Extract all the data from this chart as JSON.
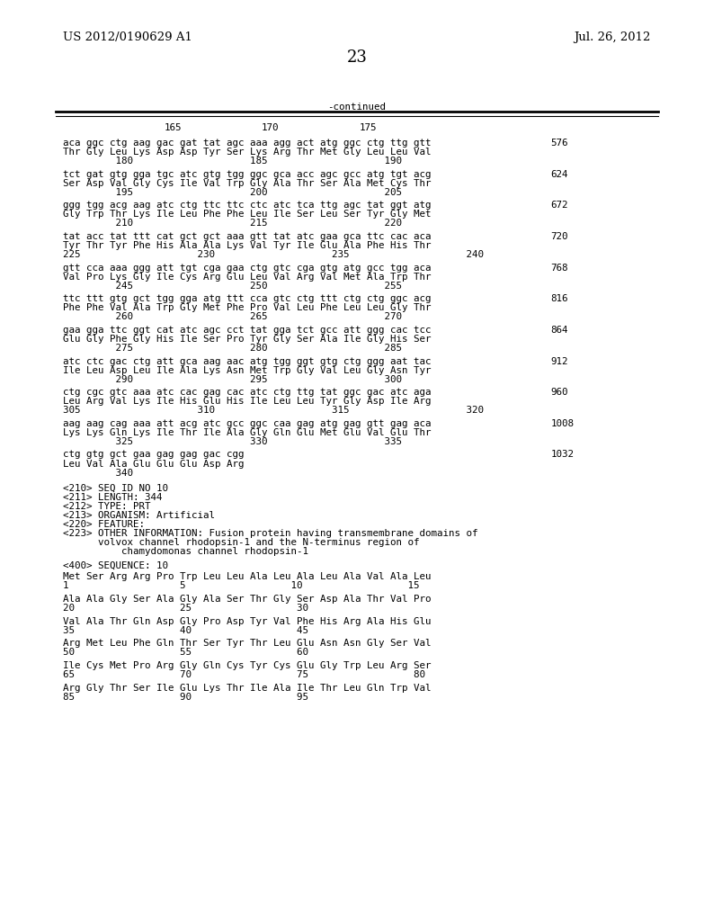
{
  "header_left": "US 2012/0190629 A1",
  "header_right": "Jul. 26, 2012",
  "page_number": "23",
  "continued_label": "-continued",
  "background_color": "#ffffff",
  "text_color": "#000000",
  "content_blocks": [
    {
      "lines": [
        {
          "text": "aca ggc ctg aag gac gat tat agc aaa agg act atg ggc ctg ttg gtt",
          "num": "576",
          "type": "seq"
        },
        {
          "text": "Thr Gly Leu Lys Asp Asp Tyr Ser Lys Arg Thr Met Gly Leu Leu Val",
          "num": "",
          "type": "aa"
        },
        {
          "text": "         180                    185                    190",
          "num": "",
          "type": "ruler"
        }
      ]
    },
    {
      "lines": [
        {
          "text": "tct gat gtg gga tgc atc gtg tgg ggc gca acc agc gcc atg tgt acg",
          "num": "624",
          "type": "seq"
        },
        {
          "text": "Ser Asp Val Gly Cys Ile Val Trp Gly Ala Thr Ser Ala Met Cys Thr",
          "num": "",
          "type": "aa"
        },
        {
          "text": "         195                    200                    205",
          "num": "",
          "type": "ruler"
        }
      ]
    },
    {
      "lines": [
        {
          "text": "ggg tgg acg aag atc ctg ttc ttc ctc atc tca ttg agc tat ggt atg",
          "num": "672",
          "type": "seq"
        },
        {
          "text": "Gly Trp Thr Lys Ile Leu Phe Phe Leu Ile Ser Leu Ser Tyr Gly Met",
          "num": "",
          "type": "aa"
        },
        {
          "text": "         210                    215                    220",
          "num": "",
          "type": "ruler"
        }
      ]
    },
    {
      "lines": [
        {
          "text": "tat acc tat ttt cat gct gct aaa gtt tat atc gaa gca ttc cac aca",
          "num": "720",
          "type": "seq"
        },
        {
          "text": "Tyr Thr Tyr Phe His Ala Ala Lys Val Tyr Ile Glu Ala Phe His Thr",
          "num": "",
          "type": "aa"
        },
        {
          "text": "225                    230                    235                    240",
          "num": "",
          "type": "ruler"
        }
      ]
    },
    {
      "lines": [
        {
          "text": "gtt cca aaa ggg att tgt cga gaa ctg gtc cga gtg atg gcc tgg aca",
          "num": "768",
          "type": "seq"
        },
        {
          "text": "Val Pro Lys Gly Ile Cys Arg Glu Leu Val Arg Val Met Ala Trp Thr",
          "num": "",
          "type": "aa"
        },
        {
          "text": "         245                    250                    255",
          "num": "",
          "type": "ruler"
        }
      ]
    },
    {
      "lines": [
        {
          "text": "ttc ttt gtg gct tgg gga atg ttt cca gtc ctg ttt ctg ctg ggc acg",
          "num": "816",
          "type": "seq"
        },
        {
          "text": "Phe Phe Val Ala Trp Gly Met Phe Pro Val Leu Phe Leu Leu Gly Thr",
          "num": "",
          "type": "aa"
        },
        {
          "text": "         260                    265                    270",
          "num": "",
          "type": "ruler"
        }
      ]
    },
    {
      "lines": [
        {
          "text": "gaa gga ttc ggt cat atc agc cct tat gga tct gcc att ggg cac tcc",
          "num": "864",
          "type": "seq"
        },
        {
          "text": "Glu Gly Phe Gly His Ile Ser Pro Tyr Gly Ser Ala Ile Gly His Ser",
          "num": "",
          "type": "aa"
        },
        {
          "text": "         275                    280                    285",
          "num": "",
          "type": "ruler"
        }
      ]
    },
    {
      "lines": [
        {
          "text": "atc ctc gac ctg att gca aag aac atg tgg ggt gtg ctg ggg aat tac",
          "num": "912",
          "type": "seq"
        },
        {
          "text": "Ile Leu Asp Leu Ile Ala Lys Asn Met Trp Gly Val Leu Gly Asn Tyr",
          "num": "",
          "type": "aa"
        },
        {
          "text": "         290                    295                    300",
          "num": "",
          "type": "ruler"
        }
      ]
    },
    {
      "lines": [
        {
          "text": "ctg cgc gtc aaa atc cac gag cac atc ctg ttg tat ggc gac atc aga",
          "num": "960",
          "type": "seq"
        },
        {
          "text": "Leu Arg Val Lys Ile His Glu His Ile Leu Leu Tyr Gly Asp Ile Arg",
          "num": "",
          "type": "aa"
        },
        {
          "text": "305                    310                    315                    320",
          "num": "",
          "type": "ruler"
        }
      ]
    },
    {
      "lines": [
        {
          "text": "aag aag cag aaa att acg atc gcc ggc caa gag atg gag gtt gag aca",
          "num": "1008",
          "type": "seq"
        },
        {
          "text": "Lys Lys Gln Lys Ile Thr Ile Ala Gly Gln Glu Met Glu Val Glu Thr",
          "num": "",
          "type": "aa"
        },
        {
          "text": "         325                    330                    335",
          "num": "",
          "type": "ruler"
        }
      ]
    },
    {
      "lines": [
        {
          "text": "ctg gtg gct gaa gag gag gac cgg",
          "num": "1032",
          "type": "seq"
        },
        {
          "text": "Leu Val Ala Glu Glu Glu Asp Arg",
          "num": "",
          "type": "aa"
        },
        {
          "text": "         340",
          "num": "",
          "type": "ruler"
        }
      ]
    }
  ],
  "meta_lines": [
    "<210> SEQ ID NO 10",
    "<211> LENGTH: 344",
    "<212> TYPE: PRT",
    "<213> ORGANISM: Artificial",
    "<220> FEATURE:",
    "<223> OTHER INFORMATION: Fusion protein having transmembrane domains of",
    "      volvox channel rhodopsin-1 and the N-terminus region of",
    "          chamydomonas channel rhodopsin-1",
    "",
    "<400> SEQUENCE: 10"
  ],
  "seq10_blocks": [
    {
      "aa": "Met Ser Arg Arg Pro Trp Leu Leu Ala Leu Ala Leu Ala Val Ala Leu",
      "ruler": "1                   5                  10                  15"
    },
    {
      "aa": "Ala Ala Gly Ser Ala Gly Ala Ser Thr Gly Ser Asp Ala Thr Val Pro",
      "ruler": "20                  25                  30"
    },
    {
      "aa": "Val Ala Thr Gln Asp Gly Pro Asp Tyr Val Phe His Arg Ala His Glu",
      "ruler": "35                  40                  45"
    },
    {
      "aa": "Arg Met Leu Phe Gln Thr Ser Tyr Thr Leu Glu Asn Asn Gly Ser Val",
      "ruler": "50                  55                  60"
    },
    {
      "aa": "Ile Cys Met Pro Arg Gly Gln Cys Tyr Cys Glu Gly Trp Leu Arg Ser",
      "ruler": "65                  70                  75                  80"
    },
    {
      "aa": "Arg Gly Thr Ser Ile Glu Lys Thr Ile Ala Ile Thr Leu Gln Trp Val",
      "ruler": "85                  90                  95"
    }
  ]
}
